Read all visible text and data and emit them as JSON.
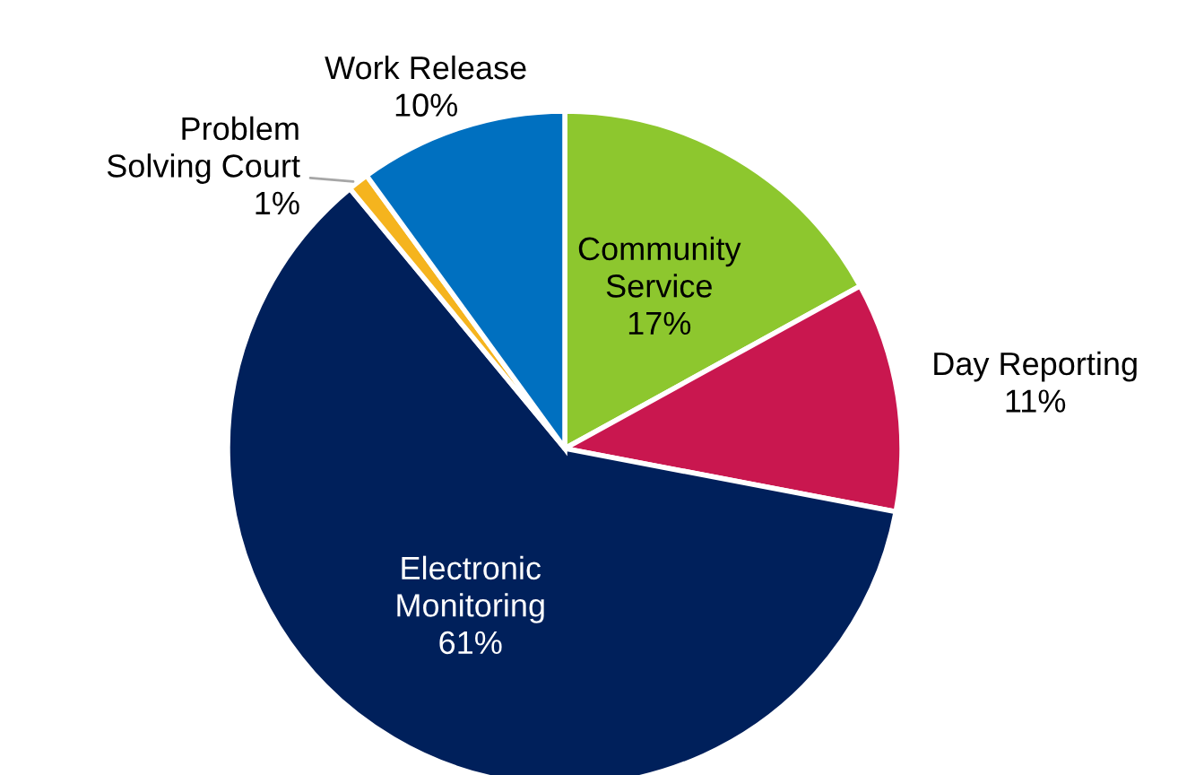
{
  "chart_data": {
    "type": "pie",
    "categories": [
      "Community Service",
      "Day Reporting",
      "Electronic Monitoring",
      "Problem Solving Court",
      "Work Release"
    ],
    "values": [
      17,
      11,
      61,
      1,
      10
    ],
    "colors": [
      "#8dc72e",
      "#c9174f",
      "#00205b",
      "#f5b41e",
      "#0070c0"
    ],
    "value_labels": [
      "17%",
      "11%",
      "61%",
      "1%",
      "10%"
    ],
    "legend": false
  }
}
